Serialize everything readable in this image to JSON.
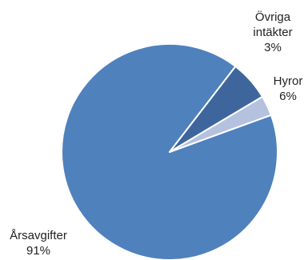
{
  "chart_data": {
    "type": "pie",
    "slices": [
      {
        "label": "Årsavgifter",
        "label_lines": [
          "Årsavgifter",
          "91%"
        ],
        "value": 91,
        "color": "#4f81bd"
      },
      {
        "label": "Hyror",
        "label_lines": [
          "Hyror",
          "6%"
        ],
        "value": 6,
        "color": "#3f669c"
      },
      {
        "label": "Övriga intäkter",
        "label_lines": [
          "Övriga",
          "intäkter",
          "3%"
        ],
        "value": 3,
        "color": "#b4c2e0"
      }
    ],
    "legend": "none"
  }
}
